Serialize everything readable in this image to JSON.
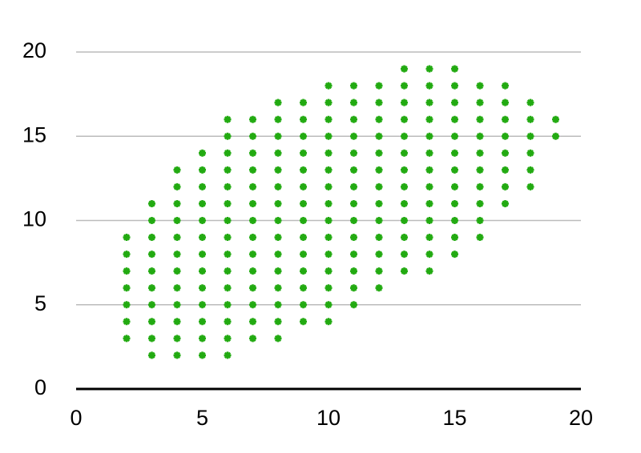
{
  "chart_data": {
    "type": "scatter",
    "color": "#22aa11",
    "grid": true,
    "xlim": [
      0,
      20
    ],
    "ylim": [
      0,
      20
    ],
    "xticks": [
      0,
      5,
      10,
      15,
      20
    ],
    "yticks": [
      0,
      5,
      10,
      15,
      20
    ],
    "x": [
      2,
      2,
      2,
      2,
      2,
      2,
      2,
      3,
      3,
      3,
      3,
      3,
      3,
      3,
      3,
      3,
      3,
      4,
      4,
      4,
      4,
      4,
      4,
      4,
      4,
      4,
      4,
      4,
      4,
      5,
      5,
      5,
      5,
      5,
      5,
      5,
      5,
      5,
      5,
      5,
      5,
      5,
      6,
      6,
      6,
      6,
      6,
      6,
      6,
      6,
      6,
      6,
      6,
      6,
      6,
      6,
      6,
      7,
      7,
      7,
      7,
      7,
      7,
      7,
      7,
      7,
      7,
      7,
      7,
      7,
      7,
      8,
      8,
      8,
      8,
      8,
      8,
      8,
      8,
      8,
      8,
      8,
      8,
      8,
      8,
      8,
      9,
      9,
      9,
      9,
      9,
      9,
      9,
      9,
      9,
      9,
      9,
      9,
      9,
      9,
      10,
      10,
      10,
      10,
      10,
      10,
      10,
      10,
      10,
      10,
      10,
      10,
      10,
      10,
      10,
      11,
      11,
      11,
      11,
      11,
      11,
      11,
      11,
      11,
      11,
      11,
      11,
      11,
      11,
      12,
      12,
      12,
      12,
      12,
      12,
      12,
      12,
      12,
      12,
      12,
      12,
      12,
      13,
      13,
      13,
      13,
      13,
      13,
      13,
      13,
      13,
      13,
      13,
      13,
      13,
      14,
      14,
      14,
      14,
      14,
      14,
      14,
      14,
      14,
      14,
      14,
      14,
      14,
      15,
      15,
      15,
      15,
      15,
      15,
      15,
      15,
      15,
      15,
      15,
      15,
      16,
      16,
      16,
      16,
      16,
      16,
      16,
      16,
      16,
      16,
      17,
      17,
      17,
      17,
      17,
      17,
      17,
      17,
      18,
      18,
      18,
      18,
      18,
      18,
      19,
      19
    ],
    "y": [
      3,
      4,
      5,
      6,
      7,
      8,
      9,
      2,
      3,
      4,
      5,
      6,
      7,
      8,
      9,
      10,
      11,
      2,
      3,
      4,
      5,
      6,
      7,
      8,
      9,
      10,
      11,
      12,
      13,
      2,
      3,
      4,
      5,
      6,
      7,
      8,
      9,
      10,
      11,
      12,
      13,
      14,
      2,
      3,
      4,
      5,
      6,
      7,
      8,
      9,
      10,
      11,
      12,
      13,
      14,
      15,
      16,
      3,
      4,
      5,
      6,
      7,
      8,
      9,
      10,
      11,
      12,
      13,
      14,
      15,
      16,
      3,
      4,
      5,
      6,
      7,
      8,
      9,
      10,
      11,
      12,
      13,
      14,
      15,
      16,
      17,
      4,
      5,
      6,
      7,
      8,
      9,
      10,
      11,
      12,
      13,
      14,
      15,
      16,
      17,
      4,
      5,
      6,
      7,
      8,
      9,
      10,
      11,
      12,
      13,
      14,
      15,
      16,
      17,
      18,
      5,
      6,
      7,
      8,
      9,
      10,
      11,
      12,
      13,
      14,
      15,
      16,
      17,
      18,
      6,
      7,
      8,
      9,
      10,
      11,
      12,
      13,
      14,
      15,
      16,
      17,
      18,
      7,
      8,
      9,
      10,
      11,
      12,
      13,
      14,
      15,
      16,
      17,
      18,
      19,
      7,
      8,
      9,
      10,
      11,
      12,
      13,
      14,
      15,
      16,
      17,
      18,
      19,
      8,
      9,
      10,
      11,
      12,
      13,
      14,
      15,
      16,
      17,
      18,
      19,
      9,
      10,
      11,
      12,
      13,
      14,
      15,
      16,
      17,
      18,
      11,
      12,
      13,
      14,
      15,
      16,
      17,
      18,
      12,
      13,
      14,
      15,
      16,
      17,
      15,
      16
    ]
  }
}
